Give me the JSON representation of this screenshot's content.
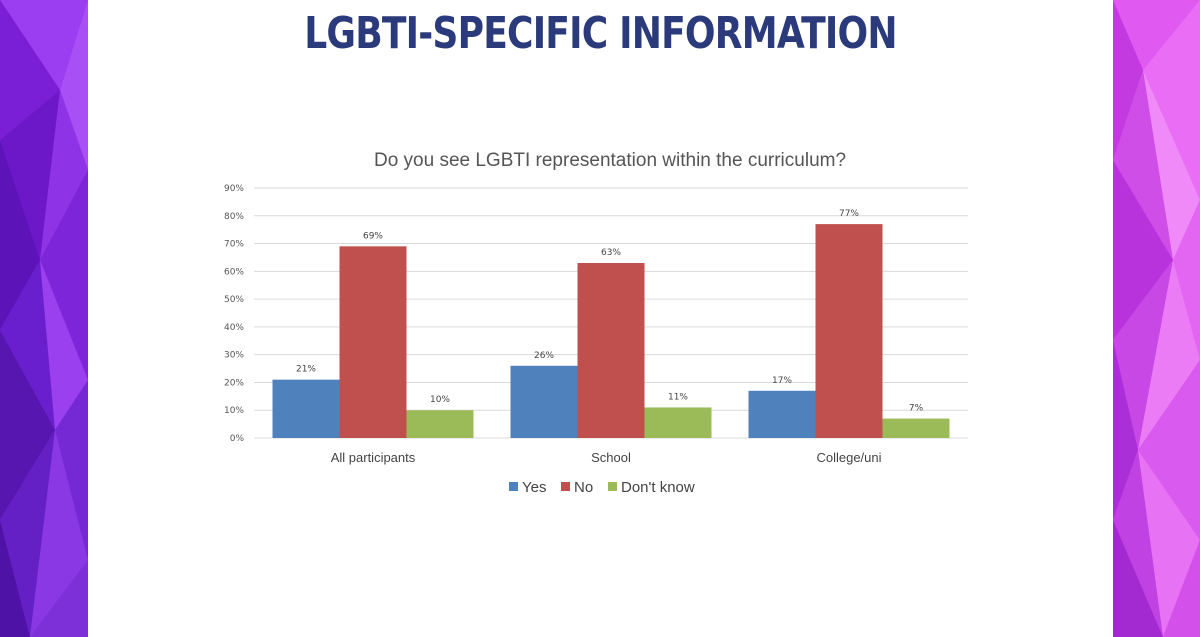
{
  "slide": {
    "title": "LGBTI-SPECIFIC INFORMATION"
  },
  "colors": {
    "title": "#2a3a7a",
    "yes": "#4f81bd",
    "no": "#c0504d",
    "dont_know": "#9bbb59",
    "grid": "#d9d9d9"
  },
  "chart_data": {
    "type": "bar",
    "title": "Do you see LGBTI representation within the curriculum?",
    "xlabel": "",
    "ylabel": "",
    "categories": [
      "All participants",
      "School",
      "College/uni"
    ],
    "series": [
      {
        "name": "Yes",
        "values": [
          21,
          26,
          17
        ],
        "labels": [
          "21%",
          "26%",
          "17%"
        ]
      },
      {
        "name": "No",
        "values": [
          69,
          63,
          77
        ],
        "labels": [
          "69%",
          "63%",
          "77%"
        ]
      },
      {
        "name": "Don't know",
        "values": [
          10,
          11,
          7
        ],
        "labels": [
          "10%",
          "11%",
          "7%"
        ]
      }
    ],
    "ylim": [
      0,
      90
    ],
    "yticks": [
      0,
      10,
      20,
      30,
      40,
      50,
      60,
      70,
      80,
      90
    ],
    "ytick_labels": [
      "0%",
      "10%",
      "20%",
      "30%",
      "40%",
      "50%",
      "60%",
      "70%",
      "80%",
      "90%"
    ],
    "grid": true,
    "legend": "bottom"
  }
}
